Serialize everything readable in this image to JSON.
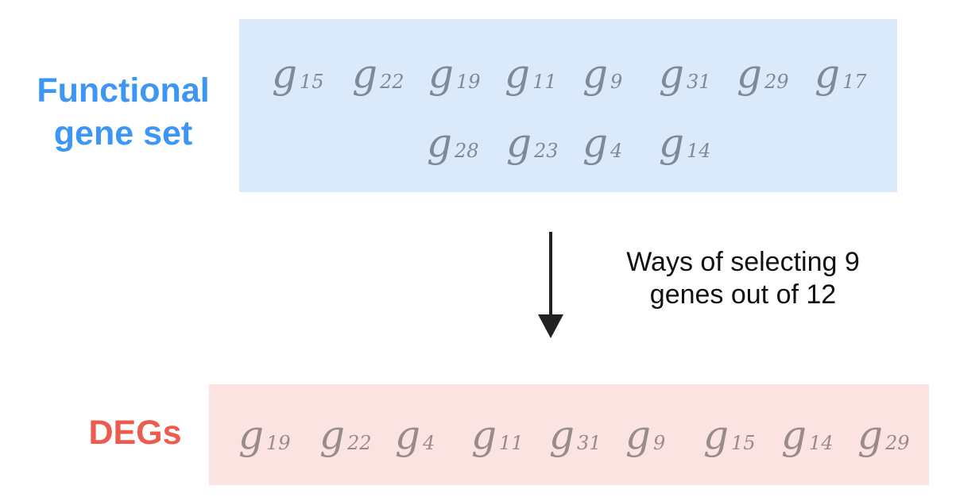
{
  "functional_set": {
    "label_line1": "Functional",
    "label_line2": "gene set",
    "genes": [
      {
        "base": "g",
        "sub": "15"
      },
      {
        "base": "g",
        "sub": "22"
      },
      {
        "base": "g",
        "sub": "19"
      },
      {
        "base": "g",
        "sub": "11"
      },
      {
        "base": "g",
        "sub": "9"
      },
      {
        "base": "g",
        "sub": "31"
      },
      {
        "base": "g",
        "sub": "29"
      },
      {
        "base": "g",
        "sub": "17"
      },
      {
        "base": "g",
        "sub": "28"
      },
      {
        "base": "g",
        "sub": "23"
      },
      {
        "base": "g",
        "sub": "4"
      },
      {
        "base": "g",
        "sub": "14"
      }
    ]
  },
  "arrow": {
    "text_line1": "Ways of selecting 9",
    "text_line2": "genes out of 12"
  },
  "degs": {
    "label": "DEGs",
    "genes": [
      {
        "base": "g",
        "sub": "19"
      },
      {
        "base": "g",
        "sub": "22"
      },
      {
        "base": "g",
        "sub": "4"
      },
      {
        "base": "g",
        "sub": "11"
      },
      {
        "base": "g",
        "sub": "31"
      },
      {
        "base": "g",
        "sub": "9"
      },
      {
        "base": "g",
        "sub": "15"
      },
      {
        "base": "g",
        "sub": "14"
      },
      {
        "base": "g",
        "sub": "29"
      }
    ]
  },
  "colors": {
    "functional_label": "#3d95f4",
    "functional_box": "#dbeafb",
    "degs_label": "#ec5b4d",
    "degs_box": "#fbe3e1",
    "arrow": "#222222"
  }
}
